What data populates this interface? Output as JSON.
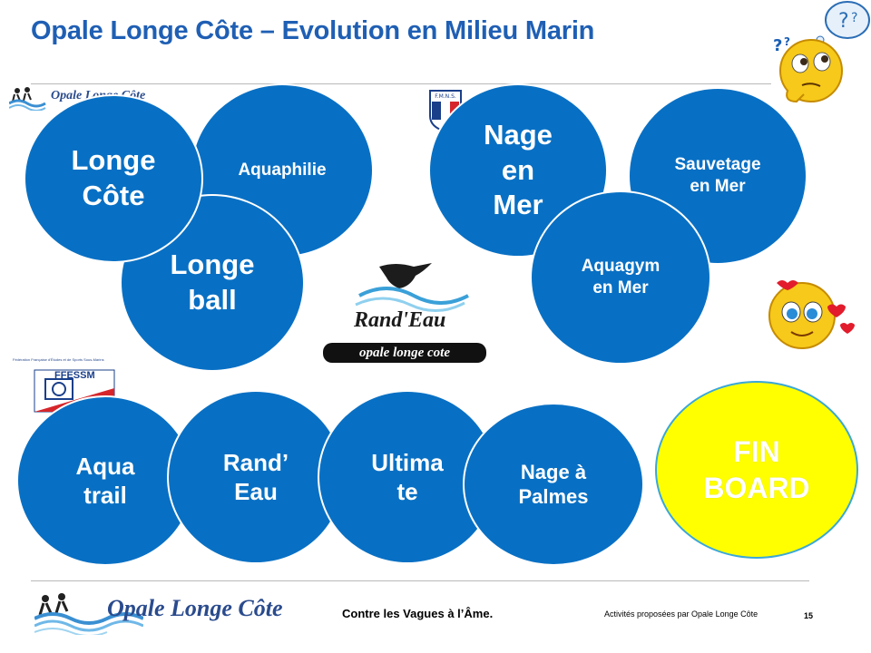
{
  "slide": {
    "title": "Opale Longe Côte – Evolution en Milieu Marin",
    "page_number": "15"
  },
  "logos": {
    "top_left_text": "Opale Longe Côte",
    "fmns_text": "F.M.N.S.",
    "ffessm_text": "FFESSM",
    "ffessm_caption": "Fédération Française d'Études et de Sports Sous-Marins",
    "randeau_text": "Rand'Eau",
    "randeau_sub": "opale longe cote",
    "footer_logo_text": "Opale Longe Côte"
  },
  "activities": [
    {
      "id": "aquaphilie",
      "label": "Aquaphilie"
    },
    {
      "id": "longe-ball",
      "label": "Longe\nball"
    },
    {
      "id": "longe-cote",
      "label": "Longe\nCôte"
    },
    {
      "id": "sauvetage-en-mer",
      "label": "Sauvetage\nen Mer"
    },
    {
      "id": "nage-en-mer",
      "label": "Nage\nen\nMer"
    },
    {
      "id": "aquagym-en-mer",
      "label": "Aquagym\nen Mer"
    },
    {
      "id": "aqua-trail",
      "label": "Aqua\ntrail"
    },
    {
      "id": "rand-eau",
      "label": "Rand’\nEau"
    },
    {
      "id": "ultimate",
      "label": "Ultima\nte"
    },
    {
      "id": "nage-a-palmes",
      "label": "Nage à\nPalmes"
    },
    {
      "id": "fin-board",
      "label": "FIN\nBOARD"
    }
  ],
  "footer": {
    "slogan": "Contre les Vagues à l’Âme.",
    "credit": "Activités proposées par Opale Longe Côte"
  },
  "colors": {
    "title": "#1f5fb4",
    "circle_blue": "#0870c4",
    "circle_yellow": "#ffff00"
  }
}
